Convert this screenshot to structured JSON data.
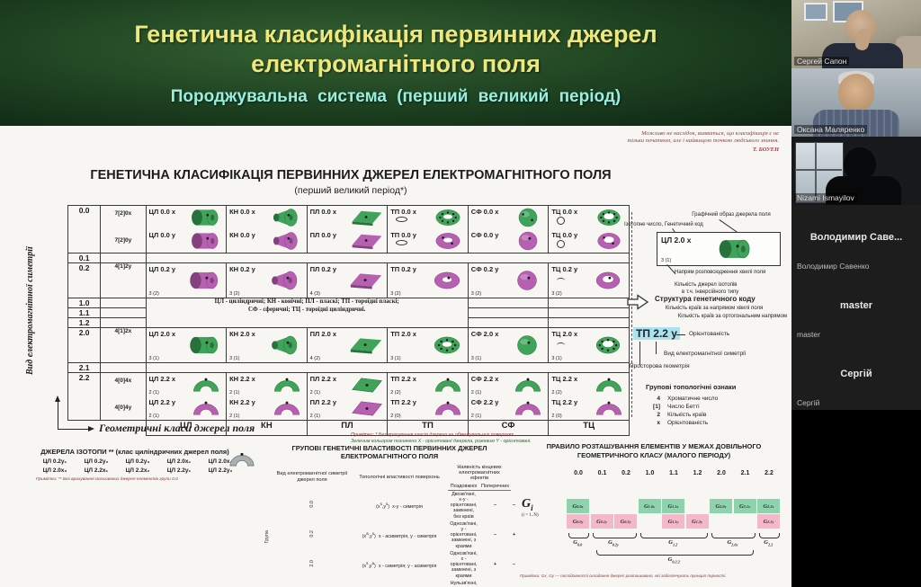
{
  "banner": {
    "title1": "Генетична класифікація первинних джерел",
    "title2": "електромагнітного поля",
    "subtitle": "Породжувальна система (перший великий період)"
  },
  "epigraph": {
    "line1": "Можливо не наслідок, виявиться, що класифікація є не",
    "line2": "тільки початком, але і найвищою точкою людського знання.",
    "author": "Т. БОУЕН"
  },
  "slide": {
    "heading": "ГЕНЕТИЧНА КЛАСИФІКАЦІЯ ПЕРВИННИХ ДЖЕРЕЛ ЕЛЕКТРОМАГНІТНОГО ПОЛЯ",
    "subheading": "(перший великий період*)",
    "axis_y": "Вид електромагнітної симетрії",
    "axis_x": "Геометричні класи джерел поля",
    "legend1": "ЦЛ - циліндричні; КН - конічні; ПЛ - пласкі; ТП - тороїдні пласкі;",
    "legend2": "СФ - сферичні; ТЦ - тороїдні циліндричні.",
    "note1": "Примітки: * Без врахування класів дзеркал на обмежувальних поверхнях.",
    "note2": "Зеленим кольором позначено X - орієнтовані джерела, рожевим Y - орієнтовані."
  },
  "table": {
    "columns": [
      "ЦЛ",
      "КН",
      "ПЛ",
      "ТП",
      "СФ",
      "ТЦ"
    ],
    "col_types": [
      "cyl",
      "con",
      "pla",
      "tpl",
      "sph",
      "tcy"
    ],
    "rows": [
      {
        "kind": "xy",
        "label": "0.0",
        "codeTop": "7[2]0x",
        "codeBot": "7[2]0y",
        "cells": [
          {
            "xl": "ЦЛ 0.0 x",
            "yl": "ЦЛ 0.0 y",
            "xdots": 1,
            "ydots": 1
          },
          {
            "xl": "КН 0.0 x",
            "yl": "КН 0.0 y",
            "xdots": 1,
            "ydots": 1
          },
          {
            "xl": "ПЛ 0.0 x",
            "yl": "ПЛ 0.0 y",
            "xdots": 1,
            "ydots": 1
          },
          {
            "xl": "ТП 0.0 x",
            "yl": "ТП 0.0 y",
            "xdots": 8,
            "ydots": 2,
            "mark": "oval"
          },
          {
            "xl": "СФ 0.0 x",
            "yl": "СФ 0.0 y",
            "xdots": 2,
            "ydots": 1
          },
          {
            "xl": "ТЦ 0.0 x",
            "yl": "ТЦ 0.0 y",
            "xdots": 8,
            "ydots": 2,
            "mark": "circle"
          }
        ]
      },
      {
        "kind": "thin",
        "label": "0.1"
      },
      {
        "kind": "single",
        "label": "0.2",
        "codeTop": "4[1]2y",
        "ori": "y",
        "cells": [
          {
            "l": "ЦЛ 0.2 y",
            "n": "3 (2)",
            "dots": 1
          },
          {
            "l": "КН 0.2 y",
            "n": "3 (2)",
            "dots": 1
          },
          {
            "l": "ПЛ 0.2 y",
            "n": "4 (3)",
            "dots": 1
          },
          {
            "l": "ТП 0.2 y",
            "n": "3 (2)",
            "dots": 1
          },
          {
            "l": "СФ 0.2 y",
            "n": "3 (2)",
            "dots": 1
          },
          {
            "l": "ТЦ 0.2 y",
            "n": "3 (2)",
            "dots": 1,
            "mark": "arc"
          }
        ]
      },
      {
        "kind": "legend3",
        "labels": [
          "1.0",
          "1.1",
          "1.2"
        ]
      },
      {
        "kind": "single",
        "label": "2.0",
        "codeTop": "4[1]2x",
        "ori": "x",
        "cells": [
          {
            "l": "ЦЛ 2.0 x",
            "n": "3 (1)",
            "dots": 1
          },
          {
            "l": "КН 2.0 x",
            "n": "3 (1)",
            "dots": 1
          },
          {
            "l": "ПЛ 2.0 x",
            "n": "4 (2)",
            "dots": 1
          },
          {
            "l": "ТП 2.0 x",
            "n": "3 (1)",
            "dots": 8
          },
          {
            "l": "СФ 2.0 x",
            "n": "3 (1)",
            "dots": 1
          },
          {
            "l": "ТЦ 2.0 x",
            "n": "3 (1)",
            "dots": 8,
            "mark": "arc"
          }
        ]
      },
      {
        "kind": "thin",
        "label": "2.1"
      },
      {
        "kind": "xy",
        "label": "2.2",
        "codeTop": "4[0]4x",
        "codeBot": "4[0]4y",
        "open": true,
        "cells": [
          {
            "xl": "ЦЛ 2.2 x",
            "xn": "2 (1)",
            "yl": "ЦЛ 2.2 y",
            "yn": "2 (1)"
          },
          {
            "xl": "КН 2.2 x",
            "xn": "2 (1)",
            "yl": "КН 2.2 y",
            "yn": "2 (1)"
          },
          {
            "xl": "ПЛ 2.2 x",
            "xn": "2 (1)",
            "yl": "ПЛ 2.2 y",
            "yn": "2 (1)"
          },
          {
            "xl": "ТП 2.2 x",
            "xn": "2 (2)",
            "yl": "ТП 2.2 y",
            "yn": "2 (0)"
          },
          {
            "xl": "СФ 2.2 x",
            "xn": "2 (1)",
            "yl": "СФ 2.2 y",
            "yn": "2 (1)"
          },
          {
            "xl": "ТЦ 2.2 x",
            "xn": "2 (2)",
            "yl": "ТЦ 2.2 y",
            "yn": "2 (0)"
          }
        ]
      }
    ]
  },
  "annotation": {
    "lbl_image": "Графічний образ джерела поля",
    "lbl_code": "Ізотопне число, Генетичний код",
    "example": {
      "label": "ЦЛ 2.0 x",
      "note": "3 (1)"
    },
    "lbl_dir": "Напрям розповсюдження хвилі поля",
    "lbl_iso": "Кількість джерел ізотопів",
    "lbl_inv": "в т.ч. інверсійного типу",
    "struct_title": "Структура генетичного коду",
    "struct_l1": "Кількість країв за напрямом хвилі поля",
    "struct_l2": "Кількість країв за ортогональним напрямом",
    "code_example": "ТП 2.2 y",
    "lbl_orient": "Орієнтованість",
    "lbl_sym": "Вид електромагнітної симетрії",
    "lbl_geom": "Просторова геометрія",
    "topo_title": "Групові топологічні ознаки",
    "topo": [
      [
        "4",
        "Хроматичне число"
      ],
      [
        "[1]",
        "Число Бетті"
      ],
      [
        "2",
        "Кількість країв"
      ],
      [
        "x",
        "Орієнтованість"
      ]
    ]
  },
  "isotopes": {
    "title": "ДЖЕРЕЛА ІЗОТОПИ ** (клас циліндричних джерел поля)",
    "row1": [
      "ЦЛ 0.2y₁",
      "ЦЛ 0.2y₂",
      "ЦЛ 0.2y₃",
      "ЦЛ 2.0x₁",
      "ЦЛ 2.0x₂"
    ],
    "row2": [
      "ЦЛ 2.0x₃",
      "ЦЛ 2.2x₁",
      "ЦЛ 2.2x₂",
      "ЦЛ 2.2y₁",
      "ЦЛ 2.2y₂"
    ],
    "note": "Примітки: ** Без врахування ізольованих джерел-елементів групи 0.0"
  },
  "properties": {
    "title1": "ГРУПОВІ ГЕНЕТИЧНІ ВЛАСТИВОСТІ ПЕРВИННИХ ДЖЕРЕЛ",
    "title2": "ЕЛЕКТРОМАГНІТНОГО ПОЛЯ",
    "col_group": "Група",
    "col_sym": "Вид електромагнітної симетрії джерел поля",
    "col_topo": "Топологічні властивості поверхонь",
    "col_eff": "Наявність кінцевих електромагнітних ефектів",
    "col_eff1": "Поздовжніх",
    "col_eff2": "Поперечних",
    "rows": [
      {
        "g": "0.0",
        "sx": "s",
        "sy": "s",
        "sym": "x-y - симетрія",
        "topo": "Двозв'язні, x-y - орієнтовані, замкнені, без країв",
        "e1": "–",
        "e2": "–"
      },
      {
        "g": "0.2",
        "sx": "a",
        "sy": "s",
        "sym": "x - асиметрія, y - симетрія",
        "topo": "Однозв'язні, y - орієнтовані, замкнені, з краями",
        "e1": "–",
        "e2": "+"
      },
      {
        "g": "2.0",
        "sx": "s",
        "sy": "a",
        "sym": "x - симетрія; y - асиметрія",
        "topo": "Однозв'язні, x - орієнтовані, замкнені, з краями",
        "e1": "+",
        "e2": "–"
      },
      {
        "g": "2.2",
        "sx": "a",
        "sy": "a",
        "sym": "x - y - асиметрія",
        "topo": "Нульзв'язні, x-y - орієнтовані розімкнені, з краями",
        "e1": "+",
        "e2": "+"
      }
    ]
  },
  "rule": {
    "title1": "ПРАВИЛО РОЗТАШУВАННЯ ЕЛЕМЕНТІВ У МЕЖАХ ДОВІЛЬНОГО",
    "title2": "ГЕОМЕТРИЧНОГО КЛАСУ (МАЛОГО ПЕРІОДУ)",
    "groups": [
      "0.0",
      "0.1",
      "0.2",
      "1.0",
      "1.1",
      "1.2",
      "2.0",
      "2.1",
      "2.2"
    ],
    "gi": "G",
    "gi_sub": "i",
    "gi_range": "(i = 1..N)",
    "green": [
      {
        "col": 0,
        "sub": "0.0x"
      },
      {
        "col": 3,
        "sub": "1.0x"
      },
      {
        "col": 4,
        "sub": "1.1x"
      },
      {
        "col": 6,
        "sub": "2.0x"
      },
      {
        "col": 7,
        "sub": "2.1x"
      },
      {
        "col": 8,
        "sub": "2.2x"
      }
    ],
    "pink": [
      {
        "col": 0,
        "sub": "0.0y"
      },
      {
        "col": 1,
        "sub": "0.1y"
      },
      {
        "col": 2,
        "sub": "0.2y"
      },
      {
        "col": 4,
        "sub": "1.1y"
      },
      {
        "col": 5,
        "sub": "1.2y"
      },
      {
        "col": 8,
        "sub": "2.2y"
      }
    ],
    "braces": [
      {
        "from": 0,
        "to": 0,
        "sub": "0.0"
      },
      {
        "from": 1,
        "to": 2,
        "sub": "0.2y"
      },
      {
        "from": 3,
        "to": 5,
        "sub": "1.2"
      },
      {
        "from": 6,
        "to": 7,
        "sub": "2.0x"
      },
      {
        "from": 8,
        "to": 8,
        "sub": "2.2"
      }
    ],
    "big_brace": {
      "from": 1,
      "to": 7,
      "sub": "0.2.2"
    },
    "note": "Примітки: Gx, Gy — послідовності складання джерел розташовано, які забезпечують принцип парності."
  },
  "participants": [
    {
      "label": "Сергей Сапон",
      "type": "video",
      "variant": "room"
    },
    {
      "label": "Оксана Маляренко",
      "type": "video",
      "variant": "man"
    },
    {
      "label": "Nizami Ismayilov",
      "type": "video",
      "variant": "win"
    },
    {
      "label": "Володимир Савенко",
      "display": "Володимир  Саве...",
      "type": "name"
    },
    {
      "label": "master",
      "display": "master",
      "type": "name"
    },
    {
      "label": "Сергій",
      "display": "Сергій",
      "type": "name"
    }
  ]
}
